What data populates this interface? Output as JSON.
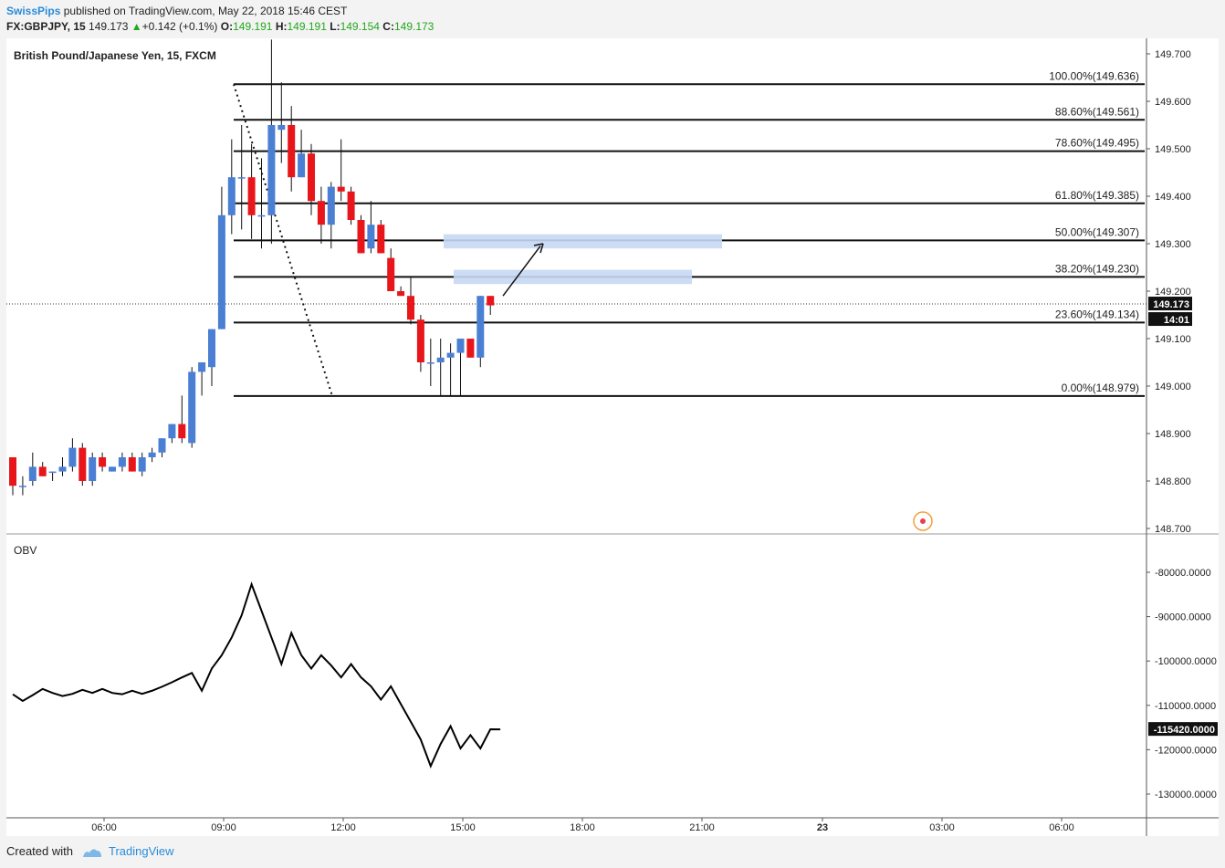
{
  "header": {
    "author": "SwissPips",
    "published": "published on TradingView.com, May 22, 2018 15:46 CEST",
    "symbol": "FX:GBPJPY, 15",
    "last": "149.173",
    "change": "+0.142 (+0.1%)",
    "o_label": "O:",
    "o": "149.191",
    "h_label": "H:",
    "h": "149.191",
    "l_label": "L:",
    "l": "149.154",
    "c_label": "C:",
    "c": "149.173"
  },
  "footer": {
    "created": "Created with",
    "brand": "TradingView"
  },
  "colors": {
    "up": "#4a7fd4",
    "down": "#e8161b",
    "highlight": "#c7d8f4",
    "obv": "#000000"
  },
  "chart_data": [
    {
      "type": "candlestick",
      "title": "British Pound/Japanese Yen, 15, FXCM",
      "ylim": [
        148.68,
        149.73
      ],
      "ytick_labels": [
        "149.700",
        "149.600",
        "149.500",
        "149.400",
        "149.300",
        "149.200",
        "149.100",
        "149.000",
        "148.900",
        "148.800",
        "148.700"
      ],
      "xtick_labels": [
        "06:00",
        "09:00",
        "12:00",
        "15:00",
        "18:00",
        "21:00",
        "23",
        "03:00",
        "06:00"
      ],
      "last_price_label": "149.173",
      "countdown_label": "14:01",
      "fib_levels": [
        {
          "label": "100.00%(149.636)",
          "value": 149.636
        },
        {
          "label": "88.60%(149.561)",
          "value": 149.561
        },
        {
          "label": "78.60%(149.495)",
          "value": 149.495
        },
        {
          "label": "61.80%(149.385)",
          "value": 149.385
        },
        {
          "label": "50.00%(149.307)",
          "value": 149.307
        },
        {
          "label": "38.20%(149.230)",
          "value": 149.23
        },
        {
          "label": "23.60%(149.134)",
          "value": 149.134
        },
        {
          "label": "0.00%(148.979)",
          "value": 148.979
        }
      ],
      "candles": [
        [
          148.85,
          148.85,
          148.77,
          148.79
        ],
        [
          148.79,
          148.81,
          148.77,
          148.79
        ],
        [
          148.8,
          148.86,
          148.79,
          148.83
        ],
        [
          148.83,
          148.84,
          148.81,
          148.81
        ],
        [
          148.82,
          148.82,
          148.8,
          148.82
        ],
        [
          148.82,
          148.85,
          148.81,
          148.83
        ],
        [
          148.83,
          148.89,
          148.82,
          148.87
        ],
        [
          148.87,
          148.88,
          148.79,
          148.8
        ],
        [
          148.8,
          148.86,
          148.79,
          148.85
        ],
        [
          148.85,
          148.86,
          148.82,
          148.83
        ],
        [
          148.82,
          148.83,
          148.82,
          148.83
        ],
        [
          148.83,
          148.86,
          148.82,
          148.85
        ],
        [
          148.85,
          148.86,
          148.82,
          148.82
        ],
        [
          148.82,
          148.86,
          148.81,
          148.85
        ],
        [
          148.85,
          148.87,
          148.84,
          148.86
        ],
        [
          148.86,
          148.89,
          148.85,
          148.89
        ],
        [
          148.89,
          148.92,
          148.88,
          148.92
        ],
        [
          148.92,
          148.98,
          148.88,
          148.89
        ],
        [
          148.88,
          149.04,
          148.87,
          149.03
        ],
        [
          149.03,
          149.05,
          148.98,
          149.05
        ],
        [
          149.04,
          149.12,
          149.0,
          149.12
        ],
        [
          149.12,
          149.42,
          149.12,
          149.36
        ],
        [
          149.36,
          149.52,
          149.32,
          149.44
        ],
        [
          149.44,
          149.55,
          149.33,
          149.44
        ],
        [
          149.44,
          149.51,
          149.31,
          149.36
        ],
        [
          149.36,
          149.48,
          149.29,
          149.36
        ],
        [
          149.36,
          149.73,
          149.3,
          149.55
        ],
        [
          149.54,
          149.64,
          149.47,
          149.55
        ],
        [
          149.55,
          149.59,
          149.41,
          149.44
        ],
        [
          149.44,
          149.54,
          149.44,
          149.49
        ],
        [
          149.49,
          149.51,
          149.36,
          149.39
        ],
        [
          149.39,
          149.42,
          149.3,
          149.34
        ],
        [
          149.34,
          149.43,
          149.29,
          149.42
        ],
        [
          149.42,
          149.52,
          149.39,
          149.41
        ],
        [
          149.41,
          149.42,
          149.34,
          149.35
        ],
        [
          149.35,
          149.36,
          149.28,
          149.28
        ],
        [
          149.29,
          149.39,
          149.28,
          149.34
        ],
        [
          149.34,
          149.35,
          149.28,
          149.28
        ],
        [
          149.27,
          149.29,
          149.2,
          149.2
        ],
        [
          149.2,
          149.21,
          149.19,
          149.19
        ],
        [
          149.19,
          149.23,
          149.13,
          149.14
        ],
        [
          149.14,
          149.15,
          149.03,
          149.05
        ],
        [
          149.05,
          149.1,
          149.0,
          149.05
        ],
        [
          149.05,
          149.1,
          148.98,
          149.06
        ],
        [
          149.06,
          149.09,
          148.98,
          149.07
        ],
        [
          149.07,
          149.1,
          148.98,
          149.1
        ],
        [
          149.1,
          149.1,
          149.06,
          149.06
        ],
        [
          149.06,
          149.19,
          149.04,
          149.19
        ],
        [
          149.19,
          149.19,
          149.15,
          149.17
        ]
      ],
      "annotation": "arrow from 149.19 to 149.30"
    },
    {
      "type": "line",
      "title": "OBV",
      "ylim": [
        -135000,
        -73000
      ],
      "ytick_labels": [
        "-80000.0000",
        "-90000.0000",
        "-100000.0000",
        "-110000.0000",
        "-120000.0000",
        "-130000.0000"
      ],
      "last_value_label": "-115420.0000",
      "values": [
        -107500,
        -109000,
        -107700,
        -106300,
        -107200,
        -107900,
        -107400,
        -106500,
        -107200,
        -106300,
        -107200,
        -107500,
        -106700,
        -107400,
        -106700,
        -105800,
        -104800,
        -103700,
        -102700,
        -106700,
        -101700,
        -98700,
        -94700,
        -89700,
        -82700,
        -88700,
        -94700,
        -100700,
        -93700,
        -98700,
        -101700,
        -98700,
        -101000,
        -103700,
        -100700,
        -103700,
        -105700,
        -108700,
        -105700,
        -109700,
        -113700,
        -117700,
        -123700,
        -118700,
        -114700,
        -119700,
        -116700,
        -119700,
        -115400,
        -115420
      ]
    }
  ]
}
